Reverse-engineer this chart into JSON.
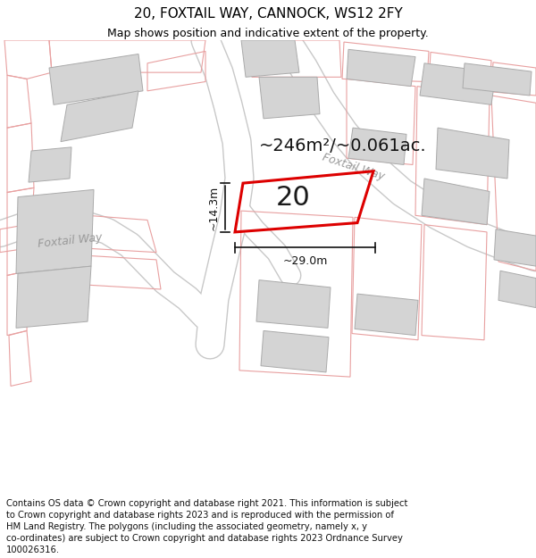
{
  "title_line1": "20, FOXTAIL WAY, CANNOCK, WS12 2FY",
  "title_line2": "Map shows position and indicative extent of the property.",
  "area_text": "~246m²/~0.061ac.",
  "plot_number": "20",
  "dim_width": "~29.0m",
  "dim_height": "~14.3m",
  "street_label_foxtail_left": "Foxtail Way",
  "street_label_foxtail_right": "Foxtail Way",
  "map_bg_color": "#f7f6f4",
  "building_fill": "#d4d4d4",
  "building_edge": "#aaaaaa",
  "parcel_edge": "#e8a0a0",
  "road_fill": "#ffffff",
  "road_edge": "#c8c8c8",
  "subject_outline": "#dd0000",
  "dim_line_color": "#111111",
  "street_label_color": "#999999",
  "area_text_fontsize": 14,
  "plot_num_fontsize": 22,
  "dim_fontsize": 9,
  "street_fontsize": 9,
  "title_fontsize": 11,
  "subtitle_fontsize": 9,
  "footer_fontsize": 7.2,
  "footer_lines": [
    "Contains OS data © Crown copyright and database right 2021. This information is subject",
    "to Crown copyright and database rights 2023 and is reproduced with the permission of",
    "HM Land Registry. The polygons (including the associated geometry, namely x, y",
    "co-ordinates) are subject to Crown copyright and database rights 2023 Ordnance Survey",
    "100026316."
  ]
}
